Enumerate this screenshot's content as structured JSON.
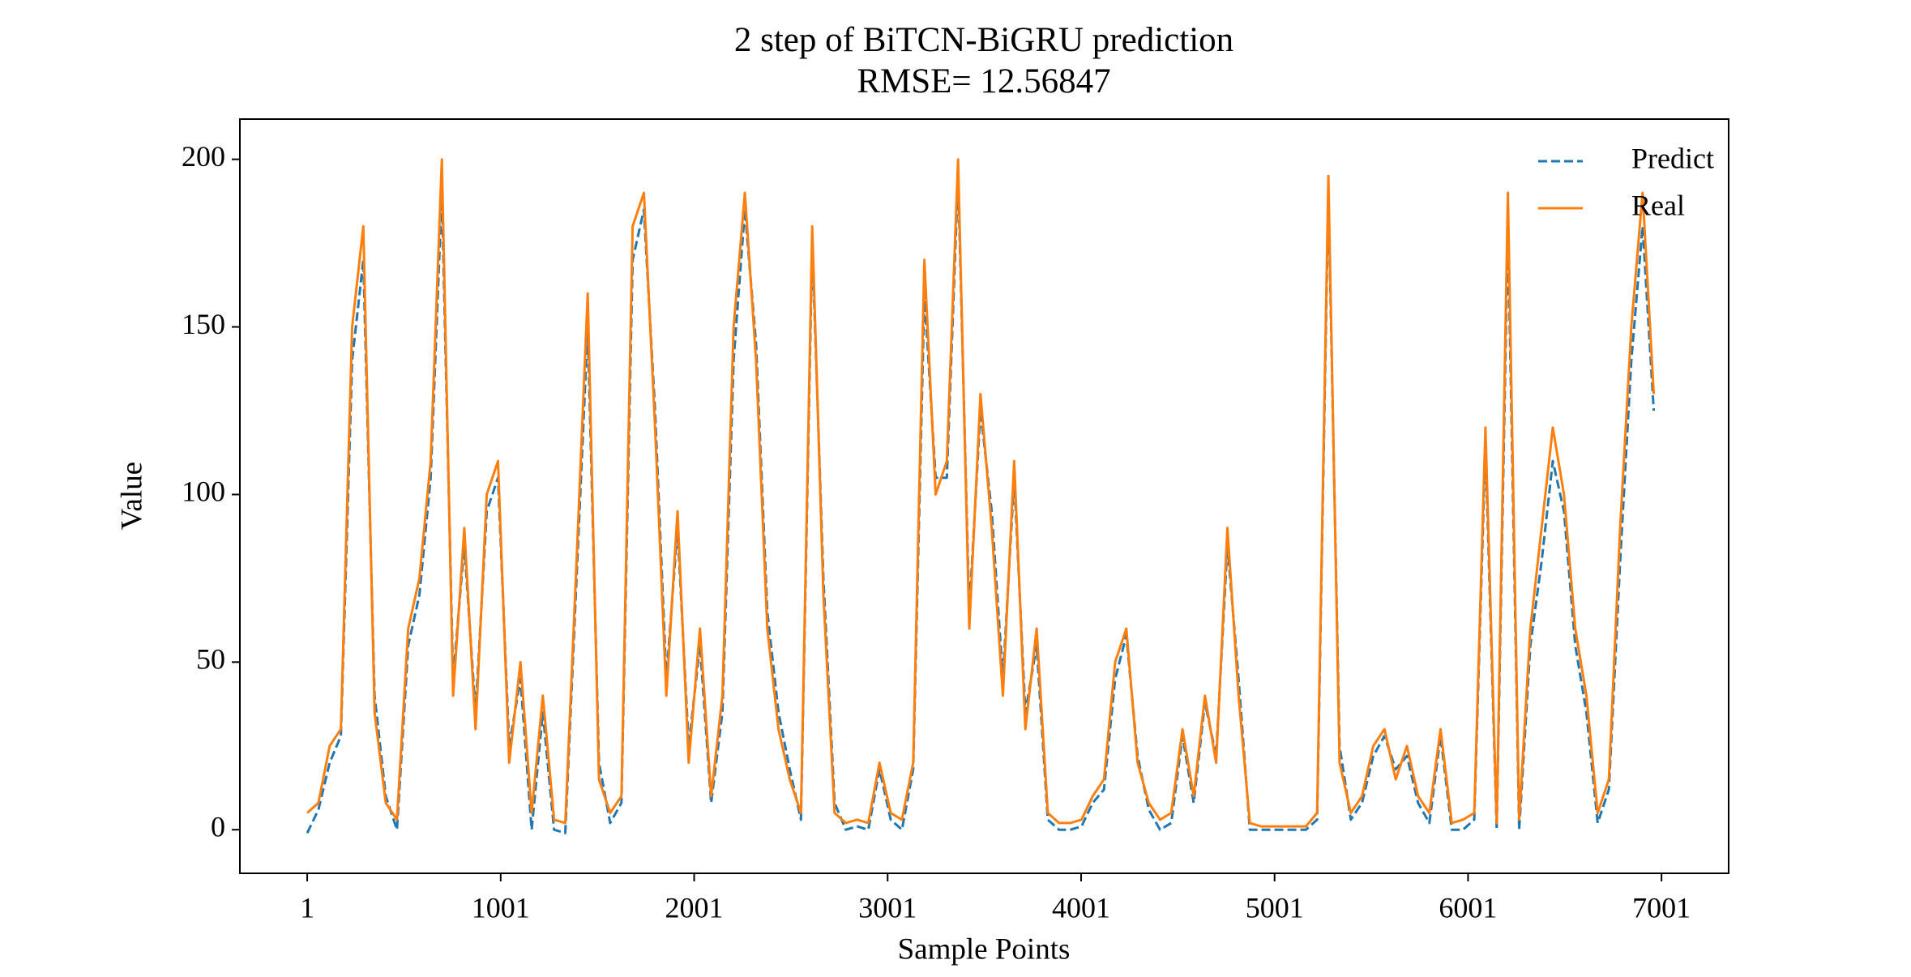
{
  "chart_data": {
    "type": "line",
    "title": "2 step of BiTCN-BiGRU prediction",
    "subtitle": "RMSE= 12.56847",
    "x_label": "Sample Points",
    "y_label": "Value",
    "xlim": [
      -347,
      7348
    ],
    "ylim": [
      -13,
      212
    ],
    "xticks": [
      1,
      1001,
      2001,
      3001,
      4001,
      5001,
      6001,
      7001
    ],
    "yticks": [
      0,
      50,
      100,
      150,
      200
    ],
    "legend": "upper right",
    "x": [
      1,
      59,
      117,
      175,
      233,
      291,
      349,
      407,
      465,
      523,
      581,
      639,
      697,
      755,
      813,
      871,
      929,
      987,
      1045,
      1103,
      1161,
      1219,
      1277,
      1335,
      1393,
      1451,
      1509,
      1567,
      1625,
      1683,
      1741,
      1799,
      1857,
      1915,
      1973,
      2031,
      2089,
      2147,
      2205,
      2263,
      2321,
      2379,
      2437,
      2495,
      2553,
      2611,
      2669,
      2727,
      2785,
      2843,
      2901,
      2959,
      3017,
      3075,
      3133,
      3191,
      3249,
      3307,
      3365,
      3423,
      3481,
      3539,
      3597,
      3655,
      3713,
      3771,
      3829,
      3887,
      3945,
      4003,
      4061,
      4119,
      4177,
      4235,
      4293,
      4351,
      4409,
      4467,
      4525,
      4583,
      4641,
      4699,
      4757,
      4815,
      4873,
      4931,
      4989,
      5047,
      5105,
      5163,
      5221,
      5279,
      5337,
      5395,
      5453,
      5511,
      5569,
      5627,
      5685,
      5743,
      5801,
      5859,
      5917,
      5975,
      6033,
      6091,
      6149,
      6207,
      6265,
      6323,
      6381,
      6439,
      6497,
      6555,
      6613,
      6671,
      6729,
      6787,
      6845,
      6903,
      6961
    ],
    "series": [
      {
        "name": "Predict",
        "color": "#1f77b4",
        "dashed": true,
        "values": [
          -1,
          6,
          20,
          28,
          140,
          170,
          40,
          10,
          0,
          55,
          70,
          105,
          190,
          45,
          85,
          35,
          95,
          105,
          25,
          45,
          0,
          35,
          0,
          -1,
          75,
          150,
          20,
          2,
          8,
          170,
          185,
          125,
          45,
          90,
          25,
          55,
          8,
          35,
          140,
          185,
          145,
          65,
          35,
          18,
          3,
          175,
          75,
          8,
          0,
          1,
          0,
          18,
          3,
          0,
          18,
          160,
          105,
          105,
          195,
          65,
          125,
          95,
          45,
          105,
          35,
          55,
          3,
          0,
          0,
          1,
          8,
          12,
          45,
          58,
          22,
          6,
          0,
          2,
          28,
          8,
          38,
          22,
          85,
          45,
          0,
          0,
          0,
          0,
          0,
          0,
          3,
          190,
          25,
          3,
          8,
          22,
          28,
          18,
          22,
          8,
          2,
          28,
          0,
          0,
          3,
          115,
          0,
          180,
          0,
          55,
          80,
          110,
          95,
          55,
          35,
          2,
          12,
          80,
          140,
          180,
          125
        ]
      },
      {
        "name": "Real",
        "color": "#ff7f0e",
        "dashed": false,
        "values": [
          5,
          8,
          25,
          30,
          150,
          180,
          35,
          8,
          3,
          60,
          75,
          110,
          200,
          40,
          90,
          30,
          100,
          110,
          20,
          50,
          5,
          40,
          3,
          2,
          80,
          160,
          15,
          5,
          10,
          180,
          190,
          120,
          40,
          95,
          20,
          60,
          10,
          40,
          150,
          190,
          140,
          60,
          30,
          15,
          5,
          180,
          70,
          5,
          2,
          3,
          2,
          20,
          5,
          3,
          20,
          170,
          100,
          110,
          200,
          60,
          130,
          90,
          40,
          110,
          30,
          60,
          5,
          2,
          2,
          3,
          10,
          15,
          50,
          60,
          20,
          8,
          3,
          5,
          30,
          10,
          40,
          20,
          90,
          40,
          2,
          1,
          1,
          1,
          1,
          1,
          5,
          195,
          20,
          5,
          10,
          25,
          30,
          15,
          25,
          10,
          5,
          30,
          2,
          3,
          5,
          120,
          2,
          190,
          3,
          60,
          90,
          120,
          100,
          60,
          40,
          5,
          15,
          90,
          150,
          190,
          130
        ]
      }
    ]
  }
}
